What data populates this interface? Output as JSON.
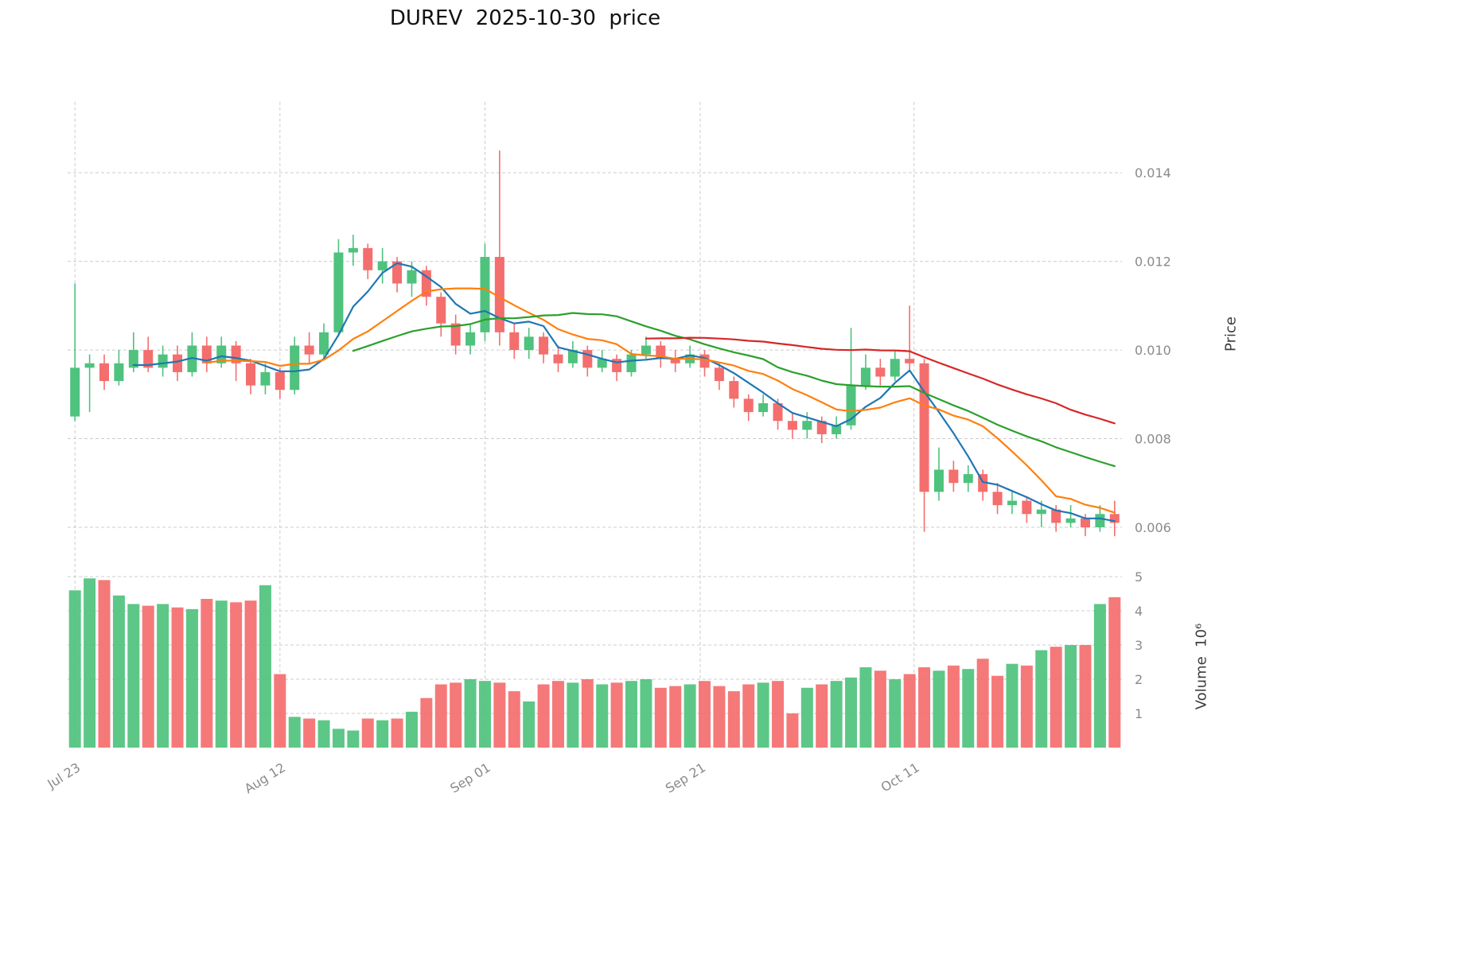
{
  "title": "DUREV  2025-10-30  price",
  "chart_data": {
    "type": "candlestick",
    "grid": true,
    "legend_position": "none",
    "price_axis": {
      "label": "Price",
      "ticks": [
        0.006,
        0.008,
        0.01,
        0.012,
        0.014
      ],
      "range": [
        0.0053,
        0.0156
      ]
    },
    "volume_axis": {
      "label": "Volume  10⁶",
      "ticks": [
        1,
        2,
        3,
        4,
        5
      ],
      "range": [
        0,
        5.35
      ]
    },
    "x_ticks": [
      {
        "label": "Jul 23",
        "index": 0
      },
      {
        "label": "Aug 12",
        "index": 14
      },
      {
        "label": "Sep 01",
        "index": 28
      },
      {
        "label": "Sep 21",
        "index": 42.7
      },
      {
        "label": "Oct 11",
        "index": 57.3
      }
    ],
    "colors": {
      "up": "#4fc27d",
      "down": "#f46e6e",
      "grid": "#cccccc",
      "tick_text": "#8a8a8a",
      "title_text": "#111111",
      "background": "#ffffff"
    },
    "moving_averages": [
      {
        "name": "MA5",
        "window": 5,
        "color": "#1f77b4"
      },
      {
        "name": "MA10",
        "window": 10,
        "color": "#ff7f0e"
      },
      {
        "name": "MA20",
        "window": 20,
        "color": "#2ca02c"
      },
      {
        "name": "MA40",
        "window": 40,
        "color": "#d62728"
      }
    ],
    "dates": [
      "2025-07-23",
      "2025-07-24",
      "2025-07-25",
      "2025-07-28",
      "2025-07-29",
      "2025-07-30",
      "2025-07-31",
      "2025-08-01",
      "2025-08-04",
      "2025-08-05",
      "2025-08-06",
      "2025-08-07",
      "2025-08-08",
      "2025-08-11",
      "2025-08-12",
      "2025-08-13",
      "2025-08-14",
      "2025-08-15",
      "2025-08-18",
      "2025-08-19",
      "2025-08-20",
      "2025-08-21",
      "2025-08-22",
      "2025-08-25",
      "2025-08-26",
      "2025-08-27",
      "2025-08-28",
      "2025-08-29",
      "2025-09-01",
      "2025-09-02",
      "2025-09-03",
      "2025-09-04",
      "2025-09-05",
      "2025-09-08",
      "2025-09-09",
      "2025-09-10",
      "2025-09-11",
      "2025-09-12",
      "2025-09-15",
      "2025-09-16",
      "2025-09-17",
      "2025-09-18",
      "2025-09-19",
      "2025-09-22",
      "2025-09-23",
      "2025-09-24",
      "2025-09-25",
      "2025-09-26",
      "2025-09-29",
      "2025-09-30",
      "2025-10-01",
      "2025-10-02",
      "2025-10-03",
      "2025-10-06",
      "2025-10-07",
      "2025-10-08",
      "2025-10-09",
      "2025-10-10",
      "2025-10-13",
      "2025-10-14",
      "2025-10-15",
      "2025-10-16",
      "2025-10-17",
      "2025-10-20",
      "2025-10-21",
      "2025-10-22",
      "2025-10-23",
      "2025-10-24",
      "2025-10-27",
      "2025-10-28",
      "2025-10-29",
      "2025-10-30"
    ],
    "open": [
      0.0085,
      0.0096,
      0.0097,
      0.0093,
      0.0096,
      0.01,
      0.0096,
      0.0099,
      0.0095,
      0.0101,
      0.0097,
      0.0101,
      0.0097,
      0.0092,
      0.0095,
      0.0091,
      0.0101,
      0.0099,
      0.0104,
      0.0122,
      0.0123,
      0.0118,
      0.012,
      0.0115,
      0.0118,
      0.0112,
      0.0106,
      0.0101,
      0.0104,
      0.0121,
      0.0104,
      0.01,
      0.0103,
      0.0099,
      0.0097,
      0.01,
      0.0096,
      0.0098,
      0.0095,
      0.0099,
      0.0101,
      0.0098,
      0.0097,
      0.0099,
      0.0096,
      0.0093,
      0.0089,
      0.0086,
      0.0088,
      0.0084,
      0.0082,
      0.0084,
      0.0081,
      0.0083,
      0.0092,
      0.0096,
      0.0094,
      0.0098,
      0.0097,
      0.0068,
      0.0073,
      0.007,
      0.0072,
      0.0068,
      0.0065,
      0.0066,
      0.0063,
      0.0064,
      0.0061,
      0.0062,
      0.006,
      0.0063
    ],
    "high": [
      0.0115,
      0.0099,
      0.0099,
      0.01,
      0.0104,
      0.0103,
      0.0101,
      0.0101,
      0.0104,
      0.0103,
      0.0103,
      0.0102,
      0.0098,
      0.0097,
      0.0096,
      0.0103,
      0.0104,
      0.0106,
      0.0125,
      0.0126,
      0.0124,
      0.0123,
      0.0121,
      0.012,
      0.0119,
      0.0113,
      0.0108,
      0.0106,
      0.0124,
      0.0145,
      0.0106,
      0.0105,
      0.0104,
      0.0101,
      0.0102,
      0.0101,
      0.01,
      0.0099,
      0.01,
      0.0103,
      0.0102,
      0.01,
      0.0101,
      0.01,
      0.0097,
      0.0094,
      0.009,
      0.009,
      0.0089,
      0.0086,
      0.0086,
      0.0085,
      0.0085,
      0.0105,
      0.0099,
      0.0098,
      0.01,
      0.011,
      0.0098,
      0.0078,
      0.0075,
      0.0074,
      0.0073,
      0.007,
      0.0068,
      0.0067,
      0.0066,
      0.0065,
      0.0065,
      0.0063,
      0.0065,
      0.0066
    ],
    "low": [
      0.0084,
      0.0086,
      0.0091,
      0.0092,
      0.0095,
      0.0095,
      0.0094,
      0.0093,
      0.0094,
      0.0095,
      0.0096,
      0.0093,
      0.009,
      0.009,
      0.0089,
      0.009,
      0.0097,
      0.0098,
      0.0103,
      0.0119,
      0.0116,
      0.0115,
      0.0113,
      0.0112,
      0.011,
      0.0103,
      0.0099,
      0.0099,
      0.0102,
      0.0101,
      0.0098,
      0.0098,
      0.0097,
      0.0095,
      0.0096,
      0.0094,
      0.0095,
      0.0093,
      0.0094,
      0.0098,
      0.0096,
      0.0095,
      0.0096,
      0.0094,
      0.0091,
      0.0087,
      0.0084,
      0.0085,
      0.0082,
      0.008,
      0.008,
      0.0079,
      0.008,
      0.0082,
      0.0091,
      0.0092,
      0.0093,
      0.0095,
      0.0059,
      0.0066,
      0.0068,
      0.0068,
      0.0066,
      0.0063,
      0.0063,
      0.0061,
      0.006,
      0.0059,
      0.006,
      0.0058,
      0.0059,
      0.0058
    ],
    "close": [
      0.0096,
      0.0097,
      0.0093,
      0.0097,
      0.01,
      0.0096,
      0.0099,
      0.0095,
      0.0101,
      0.0097,
      0.0101,
      0.0097,
      0.0092,
      0.0095,
      0.0091,
      0.0101,
      0.0099,
      0.0104,
      0.0122,
      0.0123,
      0.0118,
      0.012,
      0.0115,
      0.0118,
      0.0112,
      0.0106,
      0.0101,
      0.0104,
      0.0121,
      0.0104,
      0.01,
      0.0103,
      0.0099,
      0.0097,
      0.01,
      0.0096,
      0.0098,
      0.0095,
      0.0099,
      0.0101,
      0.0098,
      0.0097,
      0.0099,
      0.0096,
      0.0093,
      0.0089,
      0.0086,
      0.0088,
      0.0084,
      0.0082,
      0.0084,
      0.0081,
      0.0083,
      0.0092,
      0.0096,
      0.0094,
      0.0098,
      0.0097,
      0.0068,
      0.0073,
      0.007,
      0.0072,
      0.0068,
      0.0065,
      0.0066,
      0.0063,
      0.0064,
      0.0061,
      0.0062,
      0.006,
      0.0063,
      0.0061
    ],
    "volume_millions": [
      4.6,
      4.95,
      4.9,
      4.45,
      4.2,
      4.15,
      4.2,
      4.1,
      4.05,
      4.35,
      4.3,
      4.25,
      4.3,
      4.75,
      2.15,
      0.9,
      0.85,
      0.8,
      0.55,
      0.5,
      0.85,
      0.8,
      0.85,
      1.05,
      1.45,
      1.85,
      1.9,
      2.0,
      1.95,
      1.9,
      1.65,
      1.35,
      1.85,
      1.95,
      1.9,
      2.0,
      1.85,
      1.9,
      1.95,
      2.0,
      1.75,
      1.8,
      1.85,
      1.95,
      1.8,
      1.65,
      1.85,
      1.9,
      1.95,
      1.0,
      1.75,
      1.85,
      1.95,
      2.05,
      2.35,
      2.25,
      2.0,
      2.15,
      2.35,
      2.25,
      2.4,
      2.3,
      2.6,
      2.1,
      2.45,
      2.4,
      2.85,
      2.95,
      3.0,
      3.0,
      4.2,
      4.4
    ]
  }
}
